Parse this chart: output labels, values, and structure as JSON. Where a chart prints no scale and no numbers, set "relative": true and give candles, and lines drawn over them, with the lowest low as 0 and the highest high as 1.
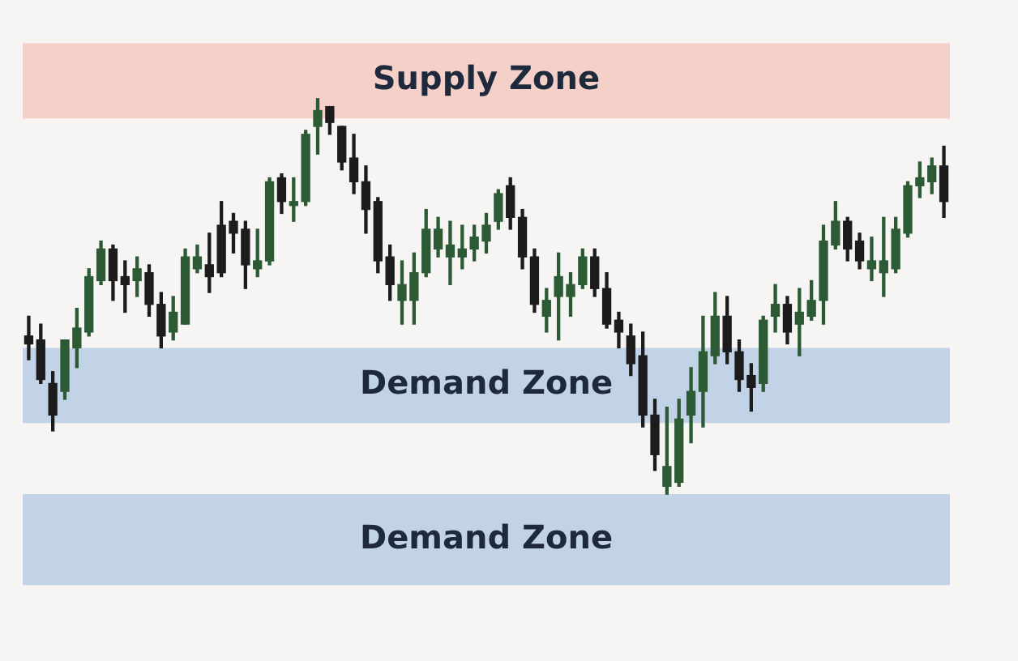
{
  "chart_data": {
    "type": "candlestick",
    "relative": true,
    "categories": [
      null,
      null,
      null,
      null,
      null,
      null,
      null,
      null,
      null,
      null,
      null,
      null,
      null,
      null,
      null,
      null,
      null,
      null,
      null,
      null,
      null,
      null,
      null,
      null,
      null,
      null,
      null,
      null,
      null,
      null,
      null,
      null,
      null,
      null,
      null,
      null,
      null,
      null,
      null,
      null,
      null,
      null,
      null,
      null,
      null,
      null,
      null,
      null,
      null,
      null,
      null,
      null,
      null,
      null,
      null,
      null,
      null,
      null,
      null,
      null,
      null,
      null,
      null,
      null,
      null,
      null,
      null,
      null,
      null,
      null,
      null,
      null,
      null,
      null,
      null,
      null,
      null
    ],
    "ohlc": [
      [
        0.4,
        0.45,
        0.34,
        0.38
      ],
      [
        0.39,
        0.43,
        0.28,
        0.29
      ],
      [
        0.28,
        0.31,
        0.16,
        0.2
      ],
      [
        0.26,
        0.39,
        0.24,
        0.39
      ],
      [
        0.37,
        0.47,
        0.32,
        0.42
      ],
      [
        0.41,
        0.57,
        0.4,
        0.55
      ],
      [
        0.54,
        0.64,
        0.53,
        0.62
      ],
      [
        0.62,
        0.63,
        0.49,
        0.54
      ],
      [
        0.55,
        0.59,
        0.46,
        0.53
      ],
      [
        0.54,
        0.6,
        0.5,
        0.57
      ],
      [
        0.56,
        0.58,
        0.45,
        0.48
      ],
      [
        0.48,
        0.51,
        0.37,
        0.4
      ],
      [
        0.41,
        0.5,
        0.39,
        0.46
      ],
      [
        0.43,
        0.62,
        0.43,
        0.6
      ],
      [
        0.57,
        0.63,
        0.56,
        0.6
      ],
      [
        0.58,
        0.66,
        0.51,
        0.55
      ],
      [
        0.68,
        0.74,
        0.55,
        0.56
      ],
      [
        0.69,
        0.71,
        0.61,
        0.66
      ],
      [
        0.67,
        0.69,
        0.52,
        0.58
      ],
      [
        0.57,
        0.67,
        0.55,
        0.59
      ],
      [
        0.59,
        0.8,
        0.58,
        0.79
      ],
      [
        0.8,
        0.81,
        0.71,
        0.74
      ],
      [
        0.73,
        0.8,
        0.69,
        0.74
      ],
      [
        0.74,
        0.92,
        0.73,
        0.91
      ],
      [
        0.93,
        1.0,
        0.86,
        0.97
      ],
      [
        0.98,
        0.98,
        0.91,
        0.94
      ],
      [
        0.93,
        0.93,
        0.82,
        0.84
      ],
      [
        0.85,
        0.91,
        0.76,
        0.79
      ],
      [
        0.79,
        0.83,
        0.66,
        0.72
      ],
      [
        0.74,
        0.75,
        0.56,
        0.59
      ],
      [
        0.6,
        0.63,
        0.49,
        0.53
      ],
      [
        0.49,
        0.59,
        0.43,
        0.53
      ],
      [
        0.49,
        0.61,
        0.43,
        0.56
      ],
      [
        0.56,
        0.72,
        0.55,
        0.67
      ],
      [
        0.62,
        0.7,
        0.6,
        0.67
      ],
      [
        0.6,
        0.69,
        0.53,
        0.63
      ],
      [
        0.6,
        0.68,
        0.57,
        0.62
      ],
      [
        0.62,
        0.68,
        0.59,
        0.65
      ],
      [
        0.64,
        0.71,
        0.61,
        0.68
      ],
      [
        0.69,
        0.77,
        0.67,
        0.76
      ],
      [
        0.78,
        0.8,
        0.67,
        0.7
      ],
      [
        0.7,
        0.72,
        0.57,
        0.6
      ],
      [
        0.6,
        0.62,
        0.46,
        0.48
      ],
      [
        0.45,
        0.52,
        0.41,
        0.49
      ],
      [
        0.5,
        0.61,
        0.39,
        0.55
      ],
      [
        0.5,
        0.56,
        0.45,
        0.53
      ],
      [
        0.53,
        0.62,
        0.52,
        0.6
      ],
      [
        0.6,
        0.62,
        0.5,
        0.52
      ],
      [
        0.52,
        0.56,
        0.42,
        0.43
      ],
      [
        0.44,
        0.46,
        0.37,
        0.41
      ],
      [
        0.4,
        0.43,
        0.3,
        0.33
      ],
      [
        0.35,
        0.41,
        0.17,
        0.2
      ],
      [
        0.2,
        0.24,
        0.06,
        0.1
      ],
      [
        0.02,
        0.22,
        0.0,
        0.07
      ],
      [
        0.03,
        0.24,
        0.02,
        0.19
      ],
      [
        0.2,
        0.32,
        0.13,
        0.26
      ],
      [
        0.26,
        0.45,
        0.17,
        0.36
      ],
      [
        0.35,
        0.51,
        0.33,
        0.45
      ],
      [
        0.45,
        0.5,
        0.33,
        0.36
      ],
      [
        0.36,
        0.39,
        0.26,
        0.29
      ],
      [
        0.3,
        0.33,
        0.21,
        0.27
      ],
      [
        0.28,
        0.45,
        0.26,
        0.44
      ],
      [
        0.45,
        0.53,
        0.41,
        0.48
      ],
      [
        0.48,
        0.5,
        0.38,
        0.41
      ],
      [
        0.43,
        0.52,
        0.35,
        0.46
      ],
      [
        0.45,
        0.54,
        0.44,
        0.49
      ],
      [
        0.49,
        0.68,
        0.43,
        0.64
      ],
      [
        0.63,
        0.74,
        0.62,
        0.69
      ],
      [
        0.69,
        0.7,
        0.59,
        0.62
      ],
      [
        0.64,
        0.66,
        0.57,
        0.59
      ],
      [
        0.57,
        0.65,
        0.54,
        0.59
      ],
      [
        0.56,
        0.7,
        0.5,
        0.59
      ],
      [
        0.57,
        0.7,
        0.56,
        0.67
      ],
      [
        0.66,
        0.79,
        0.65,
        0.78
      ],
      [
        0.78,
        0.84,
        0.75,
        0.8
      ],
      [
        0.79,
        0.85,
        0.76,
        0.83
      ],
      [
        0.83,
        0.88,
        0.7,
        0.74
      ]
    ],
    "bands": [
      {
        "axis": "y",
        "from": 0.95,
        "to": 1.14,
        "label": "Supply Zone",
        "color": "#f5c9c0"
      },
      {
        "axis": "y",
        "from": 0.18,
        "to": 0.37,
        "label": "Demand Zone",
        "color": "#b8cde4"
      },
      {
        "axis": "y",
        "from": -0.23,
        "to": 0.0,
        "label": "Demand Zone",
        "color": "#b8cde4"
      }
    ]
  }
}
